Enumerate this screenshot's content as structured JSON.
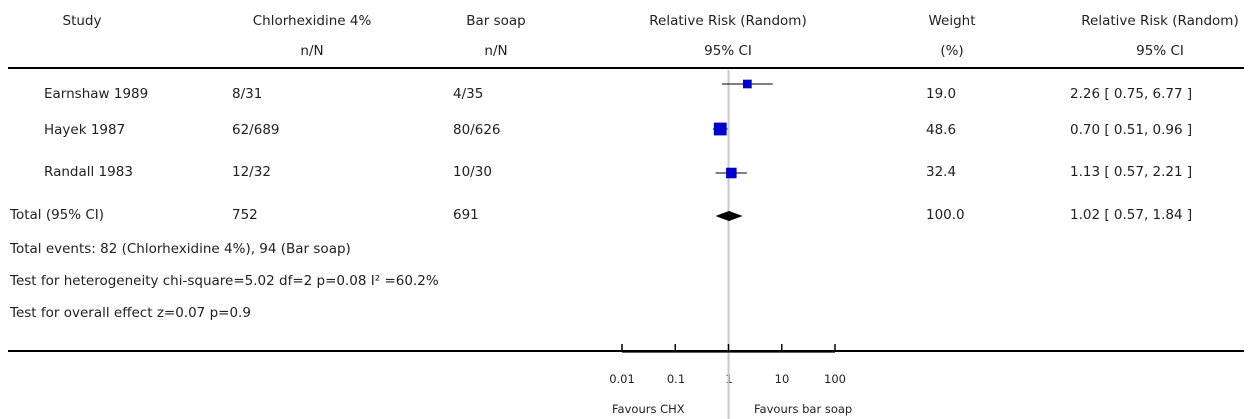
{
  "headers": {
    "study": "Study",
    "treatment": "Chlorhexidine 4%",
    "treatment_sub": "n/N",
    "control": "Bar soap",
    "control_sub": "n/N",
    "rr": "Relative Risk (Random)",
    "rr_sub": "95% CI",
    "weight": "Weight",
    "weight_sub": "(%)",
    "rr2": "Relative Risk (Random)",
    "rr2_sub": "95% CI"
  },
  "rows": [
    {
      "study": "Earnshaw 1989",
      "treatment": "8/31",
      "control": "4/35",
      "weight": "19.0",
      "ci_text": "2.26 [ 0.75, 6.77 ]"
    },
    {
      "study": "Hayek 1987",
      "treatment": "62/689",
      "control": "80/626",
      "weight": "48.6",
      "ci_text": "0.70 [ 0.51, 0.96 ]"
    },
    {
      "study": "Randall 1983",
      "treatment": "12/32",
      "control": "10/30",
      "weight": "32.4",
      "ci_text": "1.13 [ 0.57, 2.21 ]"
    }
  ],
  "total": {
    "label": "Total (95% CI)",
    "treatment": "752",
    "control": "691",
    "weight": "100.0",
    "ci_text": "1.02 [ 0.57, 1.84 ]"
  },
  "notes": [
    "Total events: 82 (Chlorhexidine 4%), 94 (Bar soap)",
    "Test for heterogeneity chi-square=5.02 df=2 p=0.08 I² =60.2%",
    "Test for overall effect z=0.07   p=0.9"
  ],
  "axis": {
    "ticks": [
      "0.01",
      "0.1",
      "1",
      "10",
      "100"
    ],
    "left_label": "Favours CHX",
    "right_label": "Favours bar soap"
  },
  "chart_data": {
    "type": "forest",
    "scale": "log",
    "xlim": [
      0.01,
      100
    ],
    "reference_line": 1,
    "tick_values": [
      0.01,
      0.1,
      1,
      10,
      100
    ],
    "studies": [
      {
        "name": "Earnshaw 1989",
        "rr": 2.26,
        "lower": 0.75,
        "upper": 6.77,
        "weight": 19.0
      },
      {
        "name": "Hayek 1987",
        "rr": 0.7,
        "lower": 0.51,
        "upper": 0.96,
        "weight": 48.6
      },
      {
        "name": "Randall 1983",
        "rr": 1.13,
        "lower": 0.57,
        "upper": 2.21,
        "weight": 32.4
      }
    ],
    "pooled": {
      "name": "Total (95% CI)",
      "rr": 1.02,
      "lower": 0.57,
      "upper": 1.84
    },
    "colors": {
      "marker": "#0000cc",
      "pooled": "#000000",
      "line": "#000000",
      "reference": "#c8c8c8"
    }
  }
}
